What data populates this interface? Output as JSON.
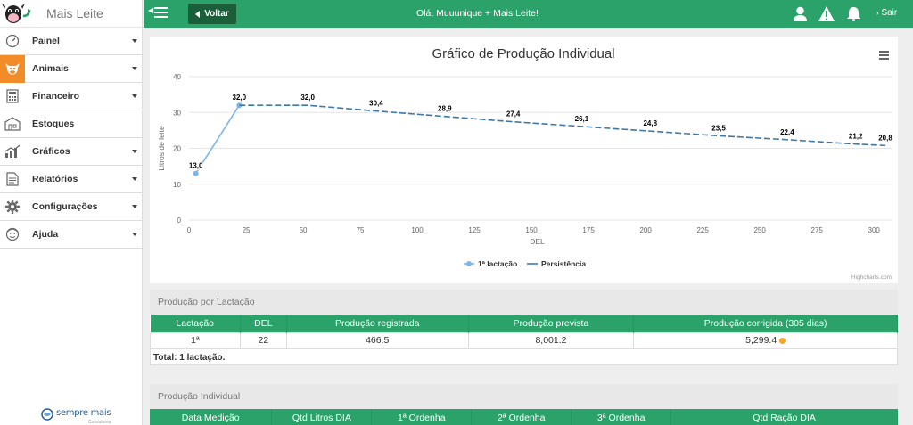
{
  "app": {
    "name": "Mais Leite"
  },
  "sidebar": {
    "items": [
      {
        "label": "Painel",
        "icon": "gauge-icon",
        "caret": true
      },
      {
        "label": "Animais",
        "icon": "cow-icon",
        "caret": true,
        "active": true
      },
      {
        "label": "Financeiro",
        "icon": "calculator-icon",
        "caret": true
      },
      {
        "label": "Estoques",
        "icon": "warehouse-icon",
        "caret": false
      },
      {
        "label": "Gráficos",
        "icon": "bar-chart-icon",
        "caret": true
      },
      {
        "label": "Relatórios",
        "icon": "document-icon",
        "caret": true
      },
      {
        "label": "Configurações",
        "icon": "gear-icon",
        "caret": true
      },
      {
        "label": "Ajuda",
        "icon": "face-icon",
        "caret": true
      }
    ],
    "footer_logo": "sempre mais",
    "footer_logo_sub": "Consultoria"
  },
  "topbar": {
    "back_label": "Voltar",
    "greeting": "Olá, Muuunique + Mais Leite!",
    "logout_label": "Sair",
    "accent": "#2aa26a"
  },
  "chart_data": {
    "type": "line",
    "title": "Gráfico de Produção Individual",
    "xlabel": "DEL",
    "ylabel": "Litros de leite",
    "xlim": [
      0,
      305
    ],
    "ylim": [
      0,
      40
    ],
    "xticks": [
      0,
      25,
      50,
      75,
      100,
      125,
      150,
      175,
      200,
      225,
      250,
      275,
      300
    ],
    "yticks": [
      0,
      10,
      20,
      30,
      40
    ],
    "grid": true,
    "legend": "bottom-center",
    "credit": "Highcharts.com",
    "series": [
      {
        "name": "1ª lactação",
        "color": "#7cb5ec",
        "style": "solid",
        "markers": true,
        "points": [
          {
            "x": 3,
            "y": 13.0,
            "label": "13,0"
          },
          {
            "x": 22,
            "y": 32.0,
            "label": "32,0"
          }
        ]
      },
      {
        "name": "Persistência",
        "color": "#3f78a8",
        "style": "dashed",
        "markers": false,
        "points": [
          {
            "x": 22,
            "y": 32.0,
            "label": ""
          },
          {
            "x": 52,
            "y": 32.0,
            "label": "32,0"
          },
          {
            "x": 82,
            "y": 30.4,
            "label": "30,4"
          },
          {
            "x": 112,
            "y": 28.9,
            "label": "28,9"
          },
          {
            "x": 142,
            "y": 27.4,
            "label": "27,4"
          },
          {
            "x": 172,
            "y": 26.1,
            "label": "26,1"
          },
          {
            "x": 202,
            "y": 24.8,
            "label": "24,8"
          },
          {
            "x": 232,
            "y": 23.5,
            "label": "23,5"
          },
          {
            "x": 262,
            "y": 22.4,
            "label": "22,4"
          },
          {
            "x": 292,
            "y": 21.2,
            "label": "21,2"
          },
          {
            "x": 305,
            "y": 20.8,
            "label": "20,8"
          }
        ]
      }
    ]
  },
  "lactacao": {
    "title": "Produção por Lactação",
    "headers": [
      "Lactação",
      "DEL",
      "Produção registrada",
      "Produção prevista",
      "Produção corrigida (305 dias)"
    ],
    "rows": [
      [
        "1ª",
        "22",
        "466.5",
        "8,001.2",
        "5,299.4"
      ]
    ],
    "total": "Total: 1 lactação."
  },
  "individual": {
    "title": "Produção Individual",
    "headers": [
      "Data Medição",
      "Qtd Litros DIA",
      "1ª Ordenha",
      "2ª Ordenha",
      "3ª Ordenha",
      "Qtd Ração DIA"
    ]
  }
}
